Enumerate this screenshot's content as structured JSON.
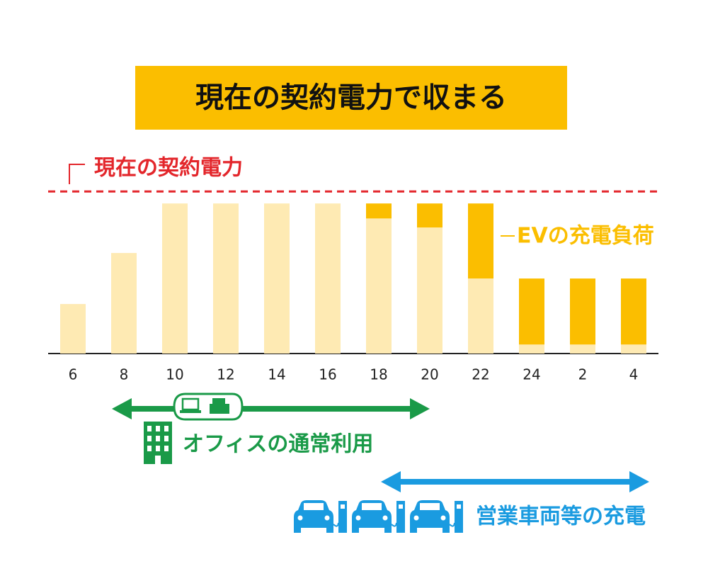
{
  "chart_data": {
    "type": "stacked_bar",
    "title": "現在の契約電力で収まる",
    "categories": [
      "6",
      "8",
      "10",
      "12",
      "14",
      "16",
      "18",
      "20",
      "22",
      "24",
      "2",
      "4"
    ],
    "series": [
      {
        "color": "#feeab3",
        "values": [
          33,
          67,
          100,
          100,
          100,
          100,
          90,
          84,
          50,
          6,
          6,
          6
        ]
      },
      {
        "name": "EVの充電負荷",
        "color": "#fbbe00",
        "values": [
          0,
          0,
          0,
          0,
          0,
          0,
          10,
          16,
          50,
          44,
          44,
          44
        ]
      }
    ],
    "ylim": [
      0,
      110
    ],
    "reference_line": {
      "label": "現在の契約電力",
      "value": 108,
      "color": "#e3262b"
    },
    "annotations": [
      "オフィスの通常利用",
      "営業車両等の充電"
    ]
  }
}
